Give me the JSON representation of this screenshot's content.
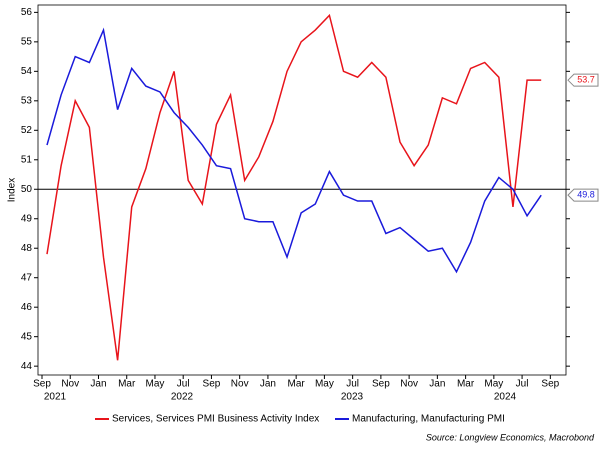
{
  "chart_data": {
    "type": "line",
    "y_label": "Index",
    "categories": [
      "2021-09",
      "2021-10",
      "2021-11",
      "2021-12",
      "2022-01",
      "2022-02",
      "2022-03",
      "2022-04",
      "2022-05",
      "2022-06",
      "2022-07",
      "2022-08",
      "2022-09",
      "2022-10",
      "2022-11",
      "2022-12",
      "2023-01",
      "2023-02",
      "2023-03",
      "2023-04",
      "2023-05",
      "2023-06",
      "2023-07",
      "2023-08",
      "2023-09",
      "2023-10",
      "2023-11",
      "2023-12",
      "2024-01",
      "2024-02",
      "2024-03",
      "2024-04",
      "2024-05",
      "2024-06",
      "2024-07",
      "2024-08"
    ],
    "x_tick_labels": [
      "Sep",
      "Nov",
      "Jan",
      "Mar",
      "May",
      "Jul",
      "Sep",
      "Nov",
      "Jan",
      "Mar",
      "May",
      "Jul",
      "Sep",
      "Nov",
      "Jan",
      "Mar",
      "May",
      "Jul",
      "Sep"
    ],
    "x_year_labels": [
      "2021",
      "2022",
      "2023",
      "2024"
    ],
    "series": [
      {
        "name": "Services, Services PMI Business Activity Index",
        "color": "#e8141b",
        "values": [
          47.8,
          50.8,
          53.0,
          52.1,
          47.7,
          44.2,
          49.4,
          50.7,
          52.6,
          54.0,
          50.3,
          49.5,
          52.2,
          53.2,
          50.3,
          51.1,
          52.3,
          54.0,
          55.0,
          55.4,
          55.9,
          54.0,
          53.8,
          54.3,
          53.8,
          51.6,
          50.8,
          51.5,
          53.1,
          52.9,
          54.1,
          54.3,
          53.8,
          49.4,
          53.7,
          53.7
        ]
      },
      {
        "name": "Manufacturing, Manufacturing PMI",
        "color": "#1a1adb",
        "values": [
          51.5,
          53.2,
          54.5,
          54.3,
          55.4,
          52.7,
          54.1,
          53.5,
          53.3,
          52.6,
          52.1,
          51.5,
          50.8,
          50.7,
          49.0,
          48.9,
          48.9,
          47.7,
          49.2,
          49.5,
          50.6,
          49.8,
          49.6,
          49.6,
          48.5,
          48.7,
          48.3,
          47.9,
          48.0,
          47.2,
          48.2,
          49.6,
          50.4,
          50.0,
          49.1,
          49.8
        ]
      }
    ],
    "reference_line": 50,
    "ylim": [
      43.7,
      56.25
    ],
    "yticks": [
      44,
      45,
      46,
      47,
      48,
      49,
      50,
      51,
      52,
      53,
      54,
      55,
      56
    ],
    "legend": "bottom",
    "source": "Source: Longview Economics, Macrobond"
  }
}
